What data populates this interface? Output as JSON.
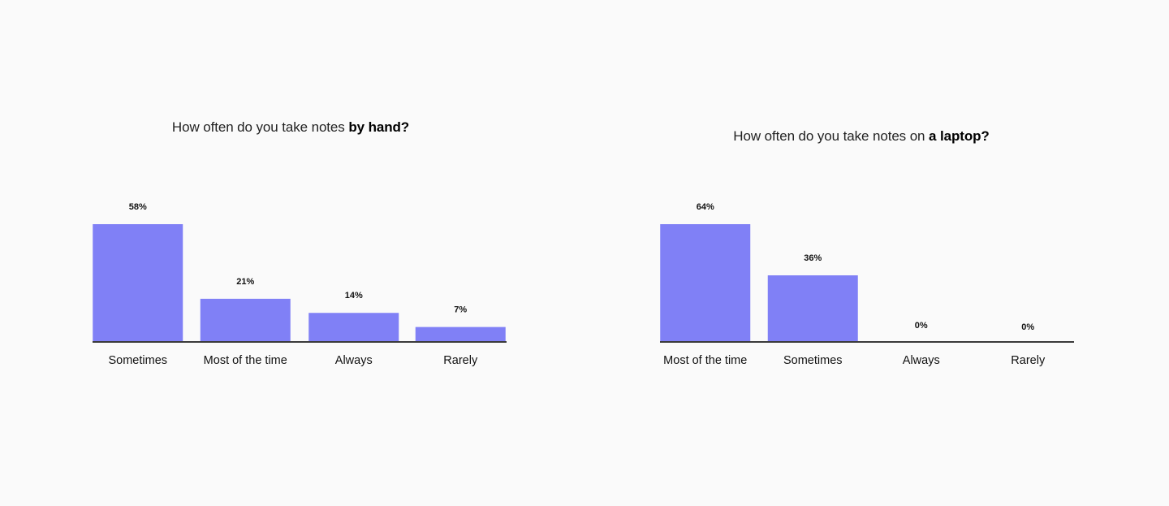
{
  "chart_data": [
    {
      "type": "bar",
      "title_plain": "How often do you take notes ",
      "title_bold": "by hand?",
      "categories": [
        "Sometimes",
        "Most of the time",
        "Always",
        "Rarely"
      ],
      "values": [
        58,
        21,
        14,
        7
      ],
      "value_labels": [
        "58%",
        "21%",
        "14%",
        "7%"
      ],
      "unit": "%",
      "ylim": [
        0,
        58
      ],
      "grid": false,
      "legend": "none",
      "colors": {
        "bar": "#8080f6",
        "axis": "#3a3a3a"
      }
    },
    {
      "type": "bar",
      "title_plain": "How often do you take notes on ",
      "title_bold": "a laptop?",
      "categories": [
        "Most of the time",
        "Sometimes",
        "Always",
        "Rarely"
      ],
      "values": [
        64,
        36,
        0,
        0
      ],
      "value_labels": [
        "64%",
        "36%",
        "0%",
        "0%"
      ],
      "unit": "%",
      "ylim": [
        0,
        64
      ],
      "grid": false,
      "legend": "none",
      "colors": {
        "bar": "#8080f6",
        "axis": "#3a3a3a"
      }
    }
  ]
}
